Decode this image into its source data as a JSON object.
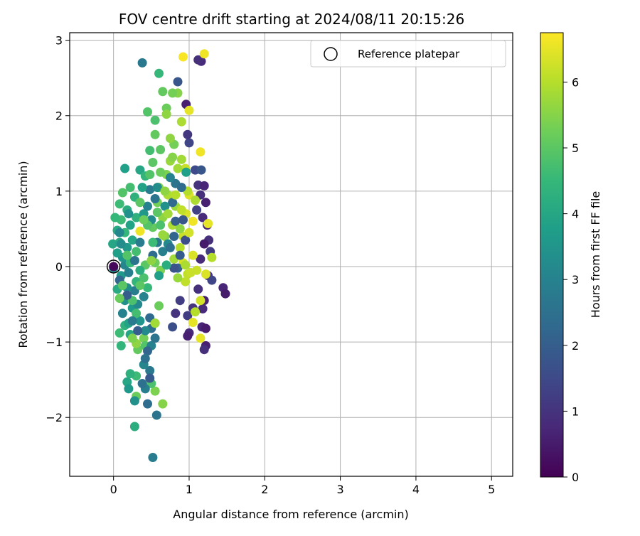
{
  "chart_data": {
    "type": "scatter",
    "title": "FOV centre drift starting at 2024/08/11 20:15:26",
    "xlabel": "Angular distance from reference (arcmin)",
    "ylabel": "Rotation from reference (arcmin)",
    "xlim": [
      -0.58,
      5.28
    ],
    "ylim": [
      -2.78,
      3.1
    ],
    "x_ticks": [
      0,
      1,
      2,
      3,
      4,
      5
    ],
    "x_tick_labels": [
      "0",
      "1",
      "2",
      "3",
      "4",
      "5"
    ],
    "y_ticks": [
      -2,
      -1,
      0,
      1,
      2,
      3
    ],
    "y_tick_labels": [
      "−2",
      "−1",
      "0",
      "1",
      "2",
      "3"
    ],
    "grid": true,
    "legend": {
      "position": "top-right",
      "entries": [
        {
          "label": "Reference platepar",
          "marker": "open-circle"
        }
      ]
    },
    "reference_point": {
      "x": 0,
      "y": 0
    },
    "colorbar": {
      "label": "Hours from first FF file",
      "range": [
        0,
        6.75
      ],
      "ticks": [
        0,
        1,
        2,
        3,
        4,
        5,
        6
      ],
      "tick_labels": [
        "0",
        "1",
        "2",
        "3",
        "4",
        "5",
        "6"
      ],
      "colormap": "viridis",
      "colormap_stops": [
        "#440154",
        "#482878",
        "#3e4a89",
        "#31688e",
        "#26828e",
        "#1f9e89",
        "#35b779",
        "#6ece58",
        "#b5de2b",
        "#fde725"
      ]
    },
    "points": [
      {
        "x": 1.16,
        "y": 2.72,
        "t": 0.8
      },
      {
        "x": 1.12,
        "y": 2.74,
        "t": 0.9
      },
      {
        "x": 0.96,
        "y": 2.15,
        "t": 0.6
      },
      {
        "x": 1.0,
        "y": 1.64,
        "t": 1.4
      },
      {
        "x": 0.98,
        "y": 1.75,
        "t": 1.1
      },
      {
        "x": 1.12,
        "y": 1.08,
        "t": 1.0
      },
      {
        "x": 1.2,
        "y": 1.07,
        "t": 0.7
      },
      {
        "x": 1.15,
        "y": 0.95,
        "t": 0.9
      },
      {
        "x": 1.22,
        "y": 0.85,
        "t": 0.6
      },
      {
        "x": 1.1,
        "y": 0.75,
        "t": 1.3
      },
      {
        "x": 1.18,
        "y": 0.65,
        "t": 0.8
      },
      {
        "x": 1.24,
        "y": 0.55,
        "t": 0.7
      },
      {
        "x": 1.26,
        "y": 0.35,
        "t": 0.9
      },
      {
        "x": 1.28,
        "y": 0.2,
        "t": 1.2
      },
      {
        "x": 1.2,
        "y": 0.3,
        "t": 0.5
      },
      {
        "x": 1.15,
        "y": 0.1,
        "t": 0.8
      },
      {
        "x": 1.25,
        "y": -0.12,
        "t": 1.0
      },
      {
        "x": 1.3,
        "y": -0.18,
        "t": 1.4
      },
      {
        "x": 1.45,
        "y": -0.28,
        "t": 0.7
      },
      {
        "x": 1.48,
        "y": -0.36,
        "t": 0.5
      },
      {
        "x": 1.12,
        "y": -0.3,
        "t": 0.9
      },
      {
        "x": 1.2,
        "y": -0.45,
        "t": 0.6
      },
      {
        "x": 1.18,
        "y": -0.56,
        "t": 0.8
      },
      {
        "x": 1.05,
        "y": -0.55,
        "t": 1.0
      },
      {
        "x": 0.98,
        "y": -0.65,
        "t": 1.2
      },
      {
        "x": 1.0,
        "y": -0.88,
        "t": 0.8
      },
      {
        "x": 0.98,
        "y": -0.92,
        "t": 0.6
      },
      {
        "x": 1.17,
        "y": -0.8,
        "t": 0.7
      },
      {
        "x": 1.22,
        "y": -0.82,
        "t": 0.5
      },
      {
        "x": 1.22,
        "y": -1.05,
        "t": 0.6
      },
      {
        "x": 1.2,
        "y": -1.1,
        "t": 0.9
      },
      {
        "x": 0.82,
        "y": -0.62,
        "t": 1.0
      },
      {
        "x": 0.78,
        "y": -0.8,
        "t": 1.6
      },
      {
        "x": 0.88,
        "y": -0.45,
        "t": 1.2
      },
      {
        "x": 1.08,
        "y": 1.28,
        "t": 1.5
      },
      {
        "x": 1.16,
        "y": 1.28,
        "t": 1.8
      },
      {
        "x": 0.85,
        "y": 2.45,
        "t": 1.8
      },
      {
        "x": 0.38,
        "y": 2.7,
        "t": 2.7
      },
      {
        "x": 0.92,
        "y": 2.78,
        "t": 6.7
      },
      {
        "x": 1.2,
        "y": 2.82,
        "t": 6.6
      },
      {
        "x": 1.0,
        "y": 2.07,
        "t": 6.5
      },
      {
        "x": 1.15,
        "y": 1.52,
        "t": 6.6
      },
      {
        "x": 0.95,
        "y": 1.3,
        "t": 6.2
      },
      {
        "x": 1.0,
        "y": 0.95,
        "t": 6.4
      },
      {
        "x": 0.98,
        "y": 1.0,
        "t": 6.0
      },
      {
        "x": 1.05,
        "y": 0.6,
        "t": 6.6
      },
      {
        "x": 1.25,
        "y": 0.57,
        "t": 6.5
      },
      {
        "x": 1.3,
        "y": 0.12,
        "t": 6.0
      },
      {
        "x": 1.1,
        "y": -0.05,
        "t": 6.2
      },
      {
        "x": 1.22,
        "y": -0.1,
        "t": 6.4
      },
      {
        "x": 0.95,
        "y": -0.2,
        "t": 6.1
      },
      {
        "x": 1.15,
        "y": -0.45,
        "t": 6.3
      },
      {
        "x": 1.15,
        "y": -0.95,
        "t": 6.5
      },
      {
        "x": 1.05,
        "y": -0.74,
        "t": 6.5
      },
      {
        "x": 1.08,
        "y": -0.6,
        "t": 6.0
      },
      {
        "x": 0.35,
        "y": 0.47,
        "t": 6.6
      },
      {
        "x": 0.92,
        "y": 0.4,
        "t": 6.2
      },
      {
        "x": 0.96,
        "y": 0.7,
        "t": 6.4
      },
      {
        "x": 1.08,
        "y": 0.88,
        "t": 5.9
      },
      {
        "x": 0.9,
        "y": 1.42,
        "t": 5.8
      },
      {
        "x": 0.9,
        "y": 1.92,
        "t": 5.9
      },
      {
        "x": 0.85,
        "y": 2.3,
        "t": 5.5
      },
      {
        "x": 0.78,
        "y": 2.3,
        "t": 5.3
      },
      {
        "x": 0.65,
        "y": 2.32,
        "t": 5.1
      },
      {
        "x": 0.6,
        "y": 2.56,
        "t": 4.5
      },
      {
        "x": 0.45,
        "y": 2.05,
        "t": 4.9
      },
      {
        "x": 0.7,
        "y": 2.1,
        "t": 5.2
      },
      {
        "x": 0.55,
        "y": 1.94,
        "t": 4.8
      },
      {
        "x": 0.62,
        "y": 1.55,
        "t": 5.0
      },
      {
        "x": 0.8,
        "y": 1.62,
        "t": 5.3
      },
      {
        "x": 0.75,
        "y": 1.7,
        "t": 5.6
      },
      {
        "x": 0.52,
        "y": 1.38,
        "t": 5.0
      },
      {
        "x": 0.48,
        "y": 1.54,
        "t": 4.7
      },
      {
        "x": 0.7,
        "y": 1.22,
        "t": 5.4
      },
      {
        "x": 0.85,
        "y": 1.3,
        "t": 5.8
      },
      {
        "x": 0.6,
        "y": 1.05,
        "t": 5.5
      },
      {
        "x": 0.72,
        "y": 0.95,
        "t": 5.9
      },
      {
        "x": 0.82,
        "y": 0.8,
        "t": 5.7
      },
      {
        "x": 0.58,
        "y": 0.85,
        "t": 5.3
      },
      {
        "x": 0.65,
        "y": 0.65,
        "t": 5.6
      },
      {
        "x": 0.78,
        "y": 0.55,
        "t": 5.9
      },
      {
        "x": 0.52,
        "y": 0.52,
        "t": 5.1
      },
      {
        "x": 0.68,
        "y": 0.4,
        "t": 5.5
      },
      {
        "x": 0.88,
        "y": 0.25,
        "t": 6.0
      },
      {
        "x": 0.92,
        "y": 0.05,
        "t": 6.3
      },
      {
        "x": 0.8,
        "y": 0.1,
        "t": 5.8
      },
      {
        "x": 0.55,
        "y": 0.05,
        "t": 5.2
      },
      {
        "x": 0.42,
        "y": 0.02,
        "t": 5.0
      },
      {
        "x": 0.62,
        "y": -0.05,
        "t": 5.4
      },
      {
        "x": 0.85,
        "y": -0.15,
        "t": 5.7
      },
      {
        "x": 0.98,
        "y": -0.1,
        "t": 6.1
      },
      {
        "x": 0.6,
        "y": -0.52,
        "t": 5.2
      },
      {
        "x": 0.55,
        "y": -0.75,
        "t": 5.0
      },
      {
        "x": 0.4,
        "y": -0.95,
        "t": 5.3
      },
      {
        "x": 0.32,
        "y": -1.1,
        "t": 5.1
      },
      {
        "x": 0.42,
        "y": -1.05,
        "t": 4.9
      },
      {
        "x": 0.3,
        "y": -1.72,
        "t": 5.2
      },
      {
        "x": 0.55,
        "y": -1.65,
        "t": 5.4
      },
      {
        "x": 0.65,
        "y": -1.82,
        "t": 5.5
      },
      {
        "x": 0.5,
        "y": -1.55,
        "t": 4.8
      },
      {
        "x": 0.3,
        "y": -1.45,
        "t": 4.6
      },
      {
        "x": 0.22,
        "y": -1.42,
        "t": 4.3
      },
      {
        "x": 0.18,
        "y": -1.53,
        "t": 4.0
      },
      {
        "x": 0.2,
        "y": -1.62,
        "t": 3.6
      },
      {
        "x": 0.28,
        "y": -1.78,
        "t": 3.4
      },
      {
        "x": 0.42,
        "y": -1.62,
        "t": 2.9
      },
      {
        "x": 0.45,
        "y": -1.82,
        "t": 2.4
      },
      {
        "x": 0.57,
        "y": -1.97,
        "t": 2.6
      },
      {
        "x": 0.28,
        "y": -2.12,
        "t": 4.2
      },
      {
        "x": 0.52,
        "y": -2.53,
        "t": 2.8
      },
      {
        "x": 0.38,
        "y": -1.55,
        "t": 2.5
      },
      {
        "x": 0.48,
        "y": -1.38,
        "t": 2.7
      },
      {
        "x": 0.4,
        "y": -1.3,
        "t": 3.1
      },
      {
        "x": 0.5,
        "y": -1.05,
        "t": 3.0
      },
      {
        "x": 0.45,
        "y": -1.12,
        "t": 2.2
      },
      {
        "x": 0.55,
        "y": -0.95,
        "t": 2.6
      },
      {
        "x": 0.5,
        "y": -0.82,
        "t": 2.4
      },
      {
        "x": 0.42,
        "y": -0.85,
        "t": 3.2
      },
      {
        "x": 0.48,
        "y": -0.68,
        "t": 2.3
      },
      {
        "x": 0.35,
        "y": -0.72,
        "t": 3.5
      },
      {
        "x": 0.22,
        "y": -0.9,
        "t": 4.0
      },
      {
        "x": 0.15,
        "y": -0.78,
        "t": 4.3
      },
      {
        "x": 0.08,
        "y": -0.88,
        "t": 4.6
      },
      {
        "x": 0.1,
        "y": -1.05,
        "t": 4.4
      },
      {
        "x": 0.2,
        "y": -0.75,
        "t": 3.9
      },
      {
        "x": 0.25,
        "y": -0.55,
        "t": 3.7
      },
      {
        "x": 0.15,
        "y": -0.45,
        "t": 3.4
      },
      {
        "x": 0.32,
        "y": -0.5,
        "t": 3.2
      },
      {
        "x": 0.4,
        "y": -0.4,
        "t": 3.0
      },
      {
        "x": 0.28,
        "y": -0.32,
        "t": 2.8
      },
      {
        "x": 0.18,
        "y": -0.28,
        "t": 3.3
      },
      {
        "x": 0.05,
        "y": -0.3,
        "t": 4.1
      },
      {
        "x": 0.1,
        "y": -0.12,
        "t": 3.6
      },
      {
        "x": 0.2,
        "y": -0.08,
        "t": 2.9
      },
      {
        "x": 0.3,
        "y": -0.2,
        "t": 4.4
      },
      {
        "x": 0.4,
        "y": -0.15,
        "t": 4.8
      },
      {
        "x": 0.45,
        "y": -0.28,
        "t": 4.5
      },
      {
        "x": 0.35,
        "y": -0.05,
        "t": 4.2
      },
      {
        "x": 0.15,
        "y": 0.02,
        "t": 3.1
      },
      {
        "x": 0.12,
        "y": 0.12,
        "t": 3.5
      },
      {
        "x": 0.05,
        "y": 0.18,
        "t": 3.8
      },
      {
        "x": 0.08,
        "y": 0.32,
        "t": 4.2
      },
      {
        "x": 0.18,
        "y": 0.25,
        "t": 3.6
      },
      {
        "x": 0.25,
        "y": 0.35,
        "t": 4.0
      },
      {
        "x": 0.15,
        "y": 0.45,
        "t": 4.5
      },
      {
        "x": 0.05,
        "y": 0.48,
        "t": 4.1
      },
      {
        "x": 0.1,
        "y": 0.62,
        "t": 4.6
      },
      {
        "x": 0.22,
        "y": 0.55,
        "t": 3.9
      },
      {
        "x": 0.3,
        "y": 0.65,
        "t": 4.3
      },
      {
        "x": 0.4,
        "y": 0.7,
        "t": 3.6
      },
      {
        "x": 0.5,
        "y": 0.62,
        "t": 3.2
      },
      {
        "x": 0.45,
        "y": 0.8,
        "t": 3.0
      },
      {
        "x": 0.55,
        "y": 0.9,
        "t": 2.6
      },
      {
        "x": 0.48,
        "y": 1.02,
        "t": 2.8
      },
      {
        "x": 0.58,
        "y": 1.05,
        "t": 3.3
      },
      {
        "x": 0.38,
        "y": 1.05,
        "t": 3.9
      },
      {
        "x": 0.28,
        "y": 0.92,
        "t": 4.3
      },
      {
        "x": 0.22,
        "y": 1.05,
        "t": 4.7
      },
      {
        "x": 0.12,
        "y": 0.98,
        "t": 4.9
      },
      {
        "x": 0.08,
        "y": 0.83,
        "t": 4.6
      },
      {
        "x": 0.18,
        "y": 0.75,
        "t": 4.2
      },
      {
        "x": 0.15,
        "y": 1.3,
        "t": 3.8
      },
      {
        "x": 0.35,
        "y": 1.28,
        "t": 4.0
      },
      {
        "x": 0.42,
        "y": 1.2,
        "t": 4.4
      },
      {
        "x": 0.02,
        "y": 0.65,
        "t": 4.5
      },
      {
        "x": -0.01,
        "y": 0.3,
        "t": 4.0
      },
      {
        "x": 0.0,
        "y": -0.02,
        "t": 3.5
      },
      {
        "x": 0.52,
        "y": 0.15,
        "t": 2.4
      },
      {
        "x": 0.58,
        "y": 0.32,
        "t": 2.7
      },
      {
        "x": 0.65,
        "y": 0.2,
        "t": 2.9
      },
      {
        "x": 0.72,
        "y": 0.3,
        "t": 3.2
      },
      {
        "x": 0.75,
        "y": 0.25,
        "t": 2.5
      },
      {
        "x": 0.8,
        "y": 0.4,
        "t": 2.2
      },
      {
        "x": 0.82,
        "y": 0.6,
        "t": 2.0
      },
      {
        "x": 0.78,
        "y": 0.85,
        "t": 2.3
      },
      {
        "x": 0.92,
        "y": 0.62,
        "t": 1.8
      },
      {
        "x": 0.95,
        "y": 0.35,
        "t": 1.6
      },
      {
        "x": 0.88,
        "y": 0.15,
        "t": 1.9
      },
      {
        "x": 0.85,
        "y": -0.02,
        "t": 2.1
      },
      {
        "x": 0.82,
        "y": 1.1,
        "t": 2.6
      },
      {
        "x": 0.75,
        "y": 1.18,
        "t": 3.0
      },
      {
        "x": 0.68,
        "y": 0.8,
        "t": 3.4
      },
      {
        "x": 0.9,
        "y": 1.05,
        "t": 2.4
      },
      {
        "x": 0.96,
        "y": 1.25,
        "t": 3.8
      },
      {
        "x": 0.8,
        "y": -0.02,
        "t": 1.7
      },
      {
        "x": 0.6,
        "y": -0.12,
        "t": 3.8
      },
      {
        "x": 0.7,
        "y": 0.02,
        "t": 4.2
      },
      {
        "x": 0.52,
        "y": 0.32,
        "t": 4.6
      },
      {
        "x": 0.62,
        "y": 0.55,
        "t": 4.8
      },
      {
        "x": 0.45,
        "y": 0.55,
        "t": 4.9
      },
      {
        "x": 0.35,
        "y": 0.85,
        "t": 5.0
      },
      {
        "x": 0.4,
        "y": 0.62,
        "t": 5.2
      },
      {
        "x": 0.3,
        "y": 0.2,
        "t": 4.7
      },
      {
        "x": 0.22,
        "y": 0.05,
        "t": 4.5
      },
      {
        "x": 0.35,
        "y": -0.25,
        "t": 5.0
      },
      {
        "x": 0.25,
        "y": -0.45,
        "t": 4.8
      },
      {
        "x": 0.3,
        "y": -0.62,
        "t": 4.7
      },
      {
        "x": 0.12,
        "y": -0.62,
        "t": 3.0
      },
      {
        "x": 0.25,
        "y": -0.72,
        "t": 2.8
      },
      {
        "x": 0.32,
        "y": -0.85,
        "t": 2.0
      },
      {
        "x": 0.42,
        "y": -1.22,
        "t": 2.5
      },
      {
        "x": 0.48,
        "y": -1.48,
        "t": 1.9
      },
      {
        "x": 0.18,
        "y": -0.38,
        "t": 2.0
      },
      {
        "x": 0.08,
        "y": -0.18,
        "t": 2.2
      },
      {
        "x": 0.28,
        "y": 0.08,
        "t": 2.6
      },
      {
        "x": 0.35,
        "y": 0.32,
        "t": 2.8
      },
      {
        "x": 0.08,
        "y": 0.45,
        "t": 3.1
      },
      {
        "x": 0.2,
        "y": 0.7,
        "t": 3.4
      },
      {
        "x": 0.1,
        "y": 0.3,
        "t": 3.3
      },
      {
        "x": 0.5,
        "y": 0.08,
        "t": 5.6
      },
      {
        "x": 0.65,
        "y": 0.42,
        "t": 5.7
      },
      {
        "x": 0.72,
        "y": 0.7,
        "t": 5.8
      },
      {
        "x": 0.82,
        "y": 0.95,
        "t": 6.0
      },
      {
        "x": 0.9,
        "y": 0.75,
        "t": 6.1
      },
      {
        "x": 1.0,
        "y": 0.45,
        "t": 6.3
      },
      {
        "x": 1.05,
        "y": 0.15,
        "t": 6.4
      },
      {
        "x": 1.02,
        "y": -0.08,
        "t": 6.2
      },
      {
        "x": 0.95,
        "y": 0.02,
        "t": 5.9
      },
      {
        "x": 0.88,
        "y": 0.5,
        "t": 5.6
      },
      {
        "x": 0.68,
        "y": 1.0,
        "t": 5.6
      },
      {
        "x": 0.75,
        "y": 1.4,
        "t": 5.7
      },
      {
        "x": 0.7,
        "y": 2.02,
        "t": 5.6
      },
      {
        "x": 0.78,
        "y": 1.45,
        "t": 5.5
      },
      {
        "x": 0.62,
        "y": 1.25,
        "t": 5.2
      },
      {
        "x": 0.55,
        "y": 1.75,
        "t": 5.1
      },
      {
        "x": 0.48,
        "y": 1.22,
        "t": 4.9
      },
      {
        "x": 0.58,
        "y": 0.72,
        "t": 5.0
      },
      {
        "x": 0.55,
        "y": -0.75,
        "t": 5.8
      },
      {
        "x": 0.3,
        "y": -1.02,
        "t": 5.6
      },
      {
        "x": 0.25,
        "y": -0.95,
        "t": 5.4
      },
      {
        "x": 0.08,
        "y": -0.42,
        "t": 5.2
      },
      {
        "x": 0.12,
        "y": -0.25,
        "t": 5.0
      },
      {
        "x": 0.18,
        "y": 0.15,
        "t": 4.9
      }
    ]
  }
}
